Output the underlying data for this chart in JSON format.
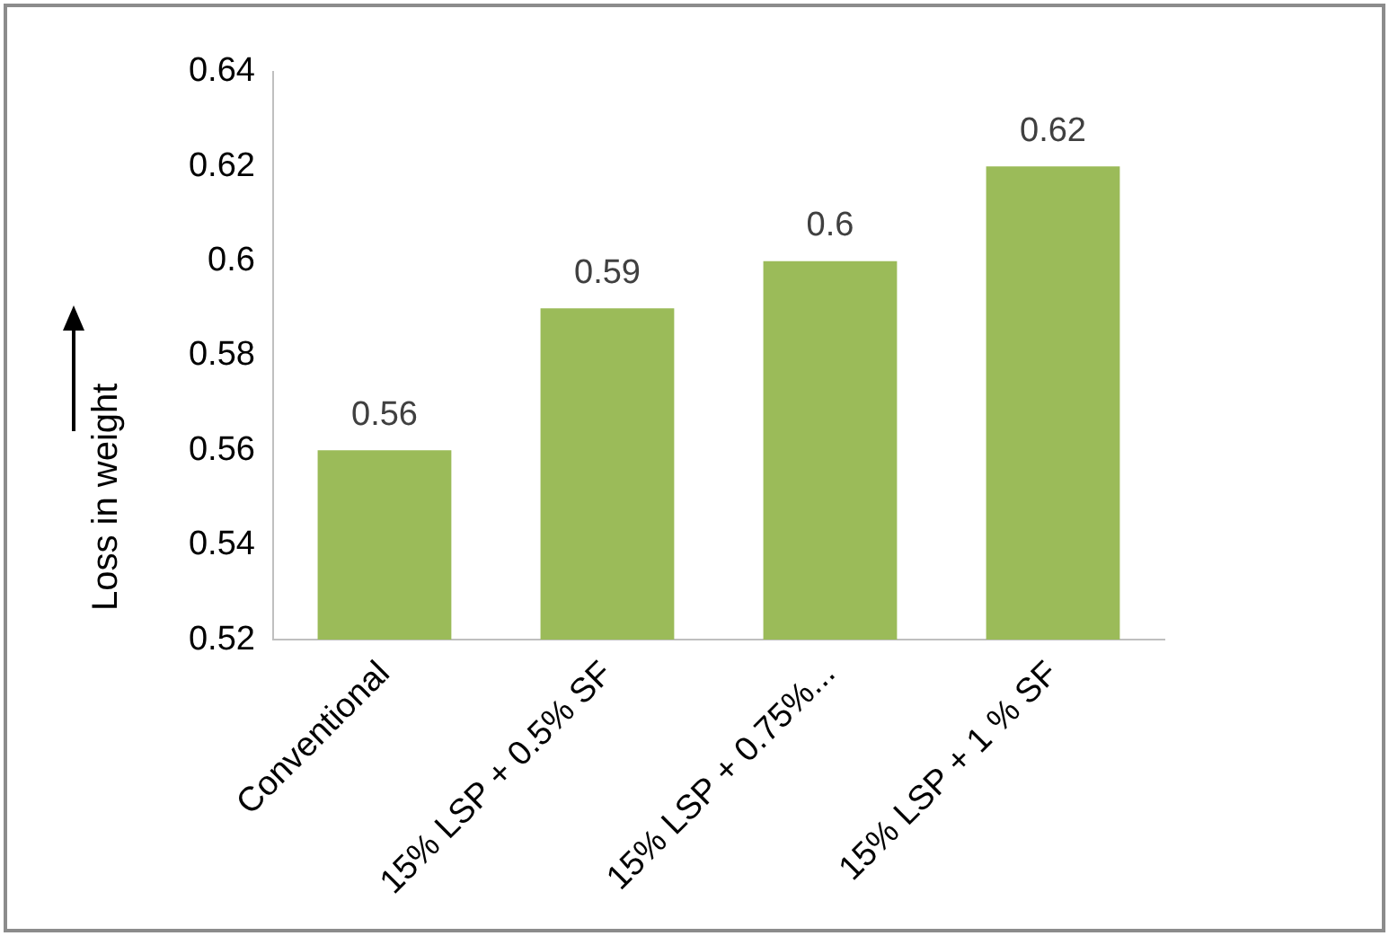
{
  "chart_data": {
    "type": "bar",
    "ylabel": "Loss in weight",
    "categories": [
      "Conventional",
      "15% LSP + 0.5% SF",
      "15% LSP + 0.75%...",
      "15% LSP + 1 % SF"
    ],
    "values": [
      0.56,
      0.59,
      0.6,
      0.62
    ],
    "color": "#9bbb59",
    "ylim": [
      0.52,
      0.64
    ],
    "yticks": [
      0.52,
      0.54,
      0.56,
      0.58,
      0.6,
      0.62,
      0.64
    ],
    "grid": false,
    "legend": false,
    "data_labels": true
  }
}
